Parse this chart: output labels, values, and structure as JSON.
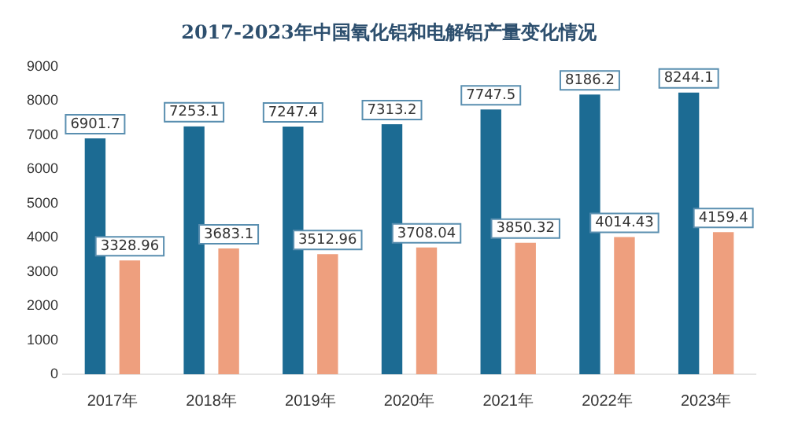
{
  "chart_data": {
    "type": "bar",
    "title": "2017-2023年中国氧化铝和电解铝产量变化情况",
    "categories": [
      "2017年",
      "2018年",
      "2019年",
      "2020年",
      "2021年",
      "2022年",
      "2023年"
    ],
    "series": [
      {
        "color": "#1c6b93",
        "values": [
          6901.7,
          7253.1,
          7247.4,
          7313.2,
          7747.5,
          8186.2,
          8244.1
        ]
      },
      {
        "color": "#ee9f7e",
        "values": [
          3328.96,
          3683.1,
          3512.96,
          3708.04,
          3850.32,
          4014.43,
          4159.4
        ]
      }
    ],
    "ylim": [
      0,
      9000
    ],
    "yticks": [
      0,
      1000,
      2000,
      3000,
      4000,
      5000,
      6000,
      7000,
      8000,
      9000
    ],
    "grid": false,
    "legend": false,
    "data_labels": true
  }
}
